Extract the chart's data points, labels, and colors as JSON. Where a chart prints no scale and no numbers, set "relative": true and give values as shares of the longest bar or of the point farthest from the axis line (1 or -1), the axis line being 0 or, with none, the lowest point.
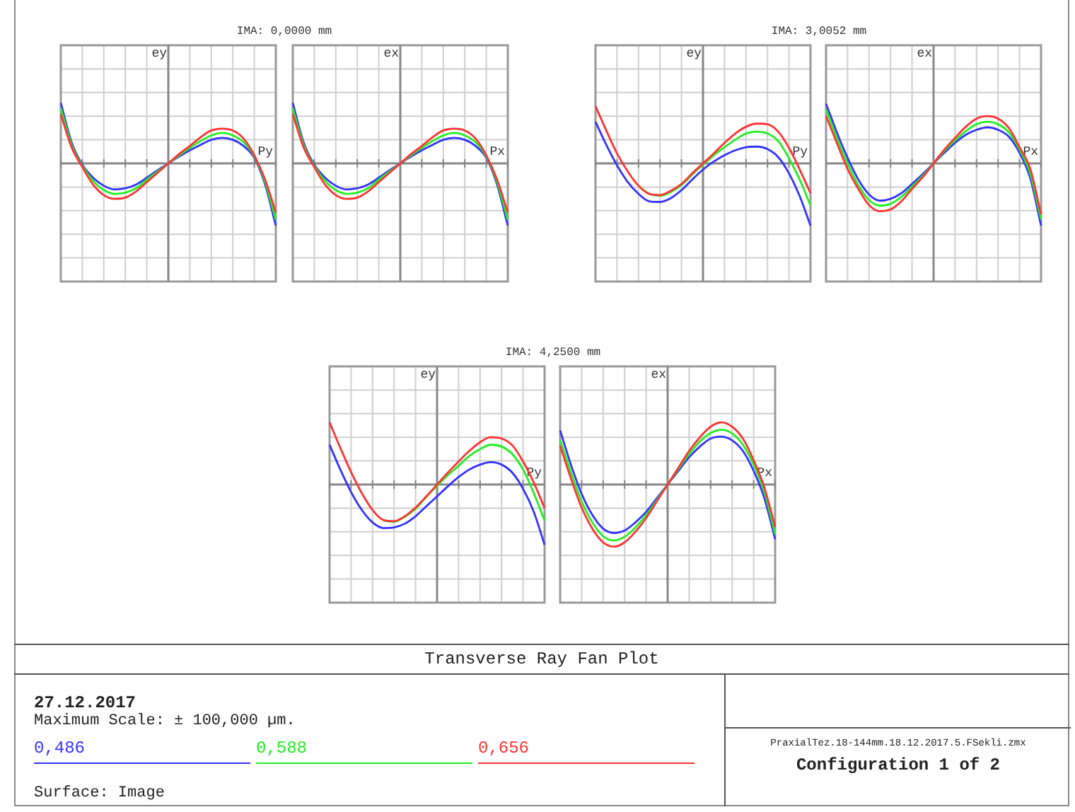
{
  "chart_data": [
    {
      "type": "line",
      "title": "IMA: 0,0000 mm",
      "ylabel": "ey",
      "xlabel": "Py",
      "relative": true,
      "grid": true,
      "categories": [
        null,
        null,
        null,
        null,
        null,
        null,
        null,
        null,
        null,
        null,
        null,
        null,
        null,
        null,
        null,
        null,
        null,
        null,
        null,
        null,
        null
      ],
      "series": [
        {
          "name": "0,486",
          "color": "#3333ff",
          "values": [
            0.97,
            0.34,
            -0.02,
            -0.23,
            -0.36,
            -0.42,
            -0.4,
            -0.34,
            -0.23,
            -0.11,
            0,
            0.11,
            0.21,
            0.3,
            0.38,
            0.41,
            0.38,
            0.28,
            0.09,
            -0.34,
            -1
          ]
        },
        {
          "name": "0,588",
          "color": "#22ee22",
          "values": [
            0.89,
            0.3,
            -0.04,
            -0.28,
            -0.43,
            -0.49,
            -0.47,
            -0.4,
            -0.26,
            -0.13,
            0,
            0.13,
            0.25,
            0.36,
            0.45,
            0.49,
            0.45,
            0.34,
            0.11,
            -0.3,
            -0.91
          ]
        },
        {
          "name": "0,656",
          "color": "#ff3333",
          "values": [
            0.79,
            0.26,
            -0.06,
            -0.34,
            -0.51,
            -0.57,
            -0.55,
            -0.45,
            -0.3,
            -0.15,
            0,
            0.15,
            0.28,
            0.42,
            0.53,
            0.56,
            0.53,
            0.4,
            0.13,
            -0.26,
            -0.79
          ]
        }
      ]
    },
    {
      "type": "line",
      "ylabel": "ex",
      "xlabel": "Px",
      "relative": true,
      "grid": true,
      "categories": [
        null,
        null,
        null,
        null,
        null,
        null,
        null,
        null,
        null,
        null,
        null,
        null,
        null,
        null,
        null,
        null,
        null,
        null,
        null,
        null,
        null
      ],
      "series": [
        {
          "color": "#3333ff",
          "values": [
            0.97,
            0.34,
            -0.02,
            -0.23,
            -0.36,
            -0.42,
            -0.4,
            -0.34,
            -0.23,
            -0.11,
            0,
            0.11,
            0.21,
            0.3,
            0.38,
            0.41,
            0.38,
            0.28,
            0.09,
            -0.34,
            -1
          ]
        },
        {
          "color": "#22ee22",
          "values": [
            0.89,
            0.3,
            -0.04,
            -0.28,
            -0.43,
            -0.49,
            -0.47,
            -0.4,
            -0.26,
            -0.13,
            0,
            0.13,
            0.25,
            0.36,
            0.45,
            0.49,
            0.45,
            0.34,
            0.11,
            -0.3,
            -0.91
          ]
        },
        {
          "color": "#ff3333",
          "values": [
            0.79,
            0.26,
            -0.06,
            -0.34,
            -0.51,
            -0.57,
            -0.55,
            -0.45,
            -0.3,
            -0.15,
            0,
            0.15,
            0.28,
            0.42,
            0.53,
            0.56,
            0.53,
            0.4,
            0.13,
            -0.26,
            -0.79
          ]
        }
      ]
    },
    {
      "type": "line",
      "title": "IMA: 3,0052 mm",
      "ylabel": "ey",
      "xlabel": "Py",
      "relative": true,
      "grid": true,
      "categories": [
        null,
        null,
        null,
        null,
        null,
        null,
        null,
        null,
        null,
        null,
        null,
        null,
        null,
        null,
        null,
        null,
        null,
        null,
        null,
        null,
        null
      ],
      "series": [
        {
          "color": "#3333ff",
          "values": [
            0.67,
            0.3,
            -0.03,
            -0.3,
            -0.49,
            -0.61,
            -0.62,
            -0.56,
            -0.43,
            -0.26,
            -0.1,
            0.03,
            0.13,
            0.21,
            0.26,
            0.27,
            0.23,
            0.1,
            -0.16,
            -0.53,
            -1
          ]
        },
        {
          "color": "#22ee22",
          "values": [
            null,
            null,
            null,
            null,
            -0.36,
            -0.49,
            -0.52,
            -0.46,
            -0.35,
            -0.18,
            -0.02,
            0.13,
            0.26,
            0.38,
            0.48,
            0.51,
            0.48,
            0.36,
            0.08,
            -0.26,
            -0.68
          ]
        },
        {
          "color": "#ff3333",
          "values": [
            0.92,
            0.53,
            0.16,
            -0.13,
            -0.36,
            -0.49,
            -0.51,
            -0.44,
            -0.33,
            -0.16,
            0,
            0.16,
            0.33,
            0.48,
            0.59,
            0.64,
            0.63,
            0.51,
            0.25,
            -0.1,
            -0.48
          ]
        }
      ]
    },
    {
      "type": "line",
      "ylabel": "ex",
      "xlabel": "Px",
      "relative": true,
      "grid": true,
      "categories": [
        null,
        null,
        null,
        null,
        null,
        null,
        null,
        null,
        null,
        null,
        null,
        null,
        null,
        null,
        null,
        null,
        null,
        null,
        null,
        null,
        null
      ],
      "series": [
        {
          "color": "#3333ff",
          "values": [
            0.96,
            0.5,
            0.09,
            -0.26,
            -0.5,
            -0.6,
            -0.57,
            -0.48,
            -0.33,
            -0.17,
            0,
            0.17,
            0.33,
            0.46,
            0.54,
            0.58,
            0.54,
            0.43,
            0.17,
            -0.24,
            -1
          ]
        },
        {
          "color": "#22ee22",
          "values": [
            0.87,
            0.41,
            0,
            -0.35,
            -0.59,
            -0.68,
            -0.65,
            -0.54,
            -0.37,
            -0.2,
            0,
            0.2,
            0.37,
            0.52,
            0.63,
            0.67,
            0.63,
            0.5,
            0.22,
            -0.17,
            -0.9
          ]
        },
        {
          "color": "#ff3333",
          "values": [
            0.76,
            0.33,
            -0.09,
            -0.41,
            -0.67,
            -0.77,
            -0.74,
            -0.61,
            -0.41,
            -0.22,
            0,
            0.22,
            0.41,
            0.59,
            0.72,
            0.76,
            0.72,
            0.57,
            0.26,
            -0.09,
            -0.82
          ]
        }
      ]
    },
    {
      "type": "line",
      "title": "IMA: 4,2500 mm",
      "ylabel": "ey",
      "xlabel": "Py",
      "relative": true,
      "grid": true,
      "categories": [
        null,
        null,
        null,
        null,
        null,
        null,
        null,
        null,
        null,
        null,
        null,
        null,
        null,
        null,
        null,
        null,
        null,
        null,
        null,
        null,
        null
      ],
      "series": [
        {
          "color": "#3333ff",
          "values": [
            0.64,
            0.24,
            -0.12,
            -0.41,
            -0.61,
            -0.7,
            -0.69,
            -0.63,
            -0.51,
            -0.35,
            -0.19,
            -0.03,
            0.12,
            0.24,
            0.32,
            0.36,
            0.32,
            0.19,
            -0.07,
            -0.44,
            -0.97
          ]
        },
        {
          "color": "#22ee22",
          "values": [
            null,
            null,
            null,
            null,
            null,
            -0.58,
            -0.6,
            -0.52,
            -0.39,
            -0.2,
            -0.02,
            0.15,
            0.3,
            0.46,
            0.57,
            0.64,
            0.61,
            0.49,
            0.24,
            -0.14,
            -0.58
          ]
        },
        {
          "color": "#ff3333",
          "values": [
            1,
            0.59,
            0.2,
            -0.14,
            -0.41,
            -0.57,
            -0.59,
            -0.51,
            -0.37,
            -0.19,
            0,
            0.19,
            0.37,
            0.54,
            0.68,
            0.76,
            0.74,
            0.63,
            0.37,
            0.03,
            -0.38
          ]
        }
      ]
    },
    {
      "type": "line",
      "ylabel": "ex",
      "xlabel": "Px",
      "relative": true,
      "grid": true,
      "categories": [
        null,
        null,
        null,
        null,
        null,
        null,
        null,
        null,
        null,
        null,
        null,
        null,
        null,
        null,
        null,
        null,
        null,
        null,
        null,
        null,
        null
      ],
      "series": [
        {
          "color": "#3333ff",
          "values": [
            0.87,
            0.32,
            -0.15,
            -0.49,
            -0.71,
            -0.78,
            -0.74,
            -0.61,
            -0.44,
            -0.22,
            0,
            0.22,
            0.44,
            0.61,
            0.74,
            0.77,
            0.71,
            0.54,
            0.22,
            -0.22,
            -0.88
          ]
        },
        {
          "color": "#22ee22",
          "values": [
            0.72,
            0.2,
            -0.27,
            -0.61,
            -0.83,
            -0.9,
            -0.84,
            -0.69,
            -0.49,
            -0.25,
            0,
            0.25,
            0.49,
            0.69,
            0.83,
            0.88,
            0.82,
            0.64,
            0.32,
            -0.12,
            -0.8
          ]
        },
        {
          "color": "#ff3333",
          "values": [
            0.62,
            0.1,
            -0.37,
            -0.71,
            -0.93,
            -1,
            -0.93,
            -0.76,
            -0.54,
            -0.27,
            0,
            0.27,
            0.54,
            0.76,
            0.93,
            1,
            0.93,
            0.74,
            0.39,
            -0.05,
            -0.68
          ]
        }
      ]
    },
    {
      "type": "other",
      "title": "Transverse Ray Fan Plot",
      "annotations": [
        "27.12.2017",
        "Maximum Scale: ± 100,000 µm.",
        "Surface: Image",
        "PraxialTez.18-144mm.18.12.2017.5.FSekli.zmx",
        "Configuration 1 of 2"
      ]
    }
  ]
}
